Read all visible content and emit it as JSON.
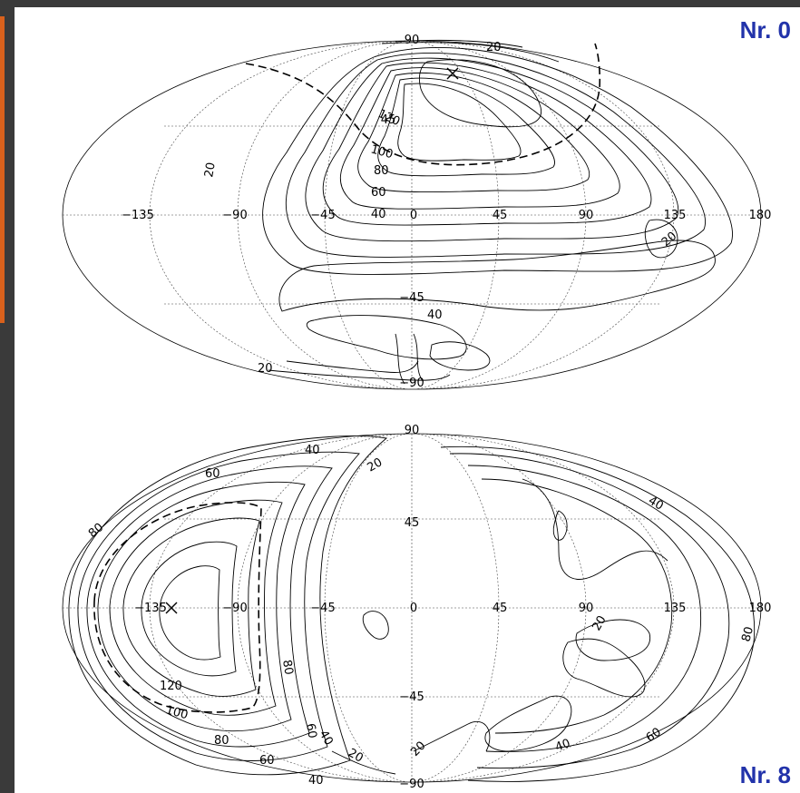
{
  "maps": [
    {
      "label": "Nr. 0",
      "lon_ticks": [
        "−135",
        "−90",
        "−45",
        "0",
        "45",
        "90",
        "135",
        "180"
      ],
      "lat_ticks": [
        "90",
        "45",
        "−45",
        "−90"
      ],
      "contour_labels": [
        "20",
        "40",
        "60",
        "80",
        "100",
        "120",
        "20",
        "40",
        "20",
        "20"
      ],
      "max_marker": {
        "lon": 25,
        "lat": 72
      }
    },
    {
      "label": "Nr. 8",
      "lon_ticks": [
        "−135",
        "−90",
        "−45",
        "0",
        "45",
        "90",
        "135",
        "180"
      ],
      "lat_ticks": [
        "90",
        "45",
        "−45",
        "−90"
      ],
      "contour_labels": [
        "40",
        "20",
        "60",
        "80",
        "120",
        "100",
        "80",
        "60",
        "40",
        "80",
        "60",
        "40",
        "20",
        "20",
        "20",
        "40",
        "60",
        "80",
        "40"
      ],
      "max_marker": {
        "lon": -130,
        "lat": 0
      }
    }
  ],
  "colors": {
    "accent": "#d9611c",
    "label": "#2233aa",
    "frame": "#3a3a3a"
  }
}
